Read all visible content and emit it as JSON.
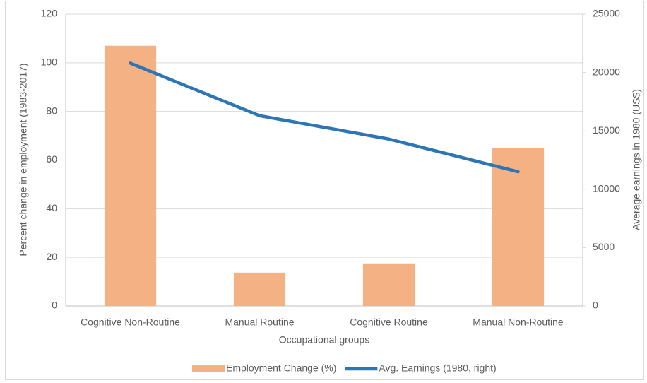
{
  "chart_data": {
    "type": "bar",
    "x_label": "Occupational groups",
    "y_label": "Percent change in employment (1983-2017)",
    "y2_label": "Average earnings in 1980 (US$)",
    "categories": [
      "Cognitive Non-Routine",
      "Manual Routine",
      "Cognitive Routine",
      "Manual Non-Routine"
    ],
    "series": [
      {
        "name": "Employment Change (%)",
        "type": "bar",
        "color": "#f4b183",
        "values": [
          107,
          13.7,
          17.5,
          65
        ]
      },
      {
        "name": "Avg. Earnings (1980, right)",
        "type": "line",
        "axis": "y2",
        "color": "#2e75b6",
        "values": [
          20800,
          16300,
          14300,
          11500
        ]
      }
    ],
    "ylim": [
      0,
      120
    ],
    "yticks": [
      0,
      20,
      40,
      60,
      80,
      100,
      120
    ],
    "y2lim": [
      0,
      25000
    ],
    "y2ticks": [
      0,
      5000,
      10000,
      15000,
      20000,
      25000
    ],
    "grid": true,
    "legend": "bottom"
  }
}
